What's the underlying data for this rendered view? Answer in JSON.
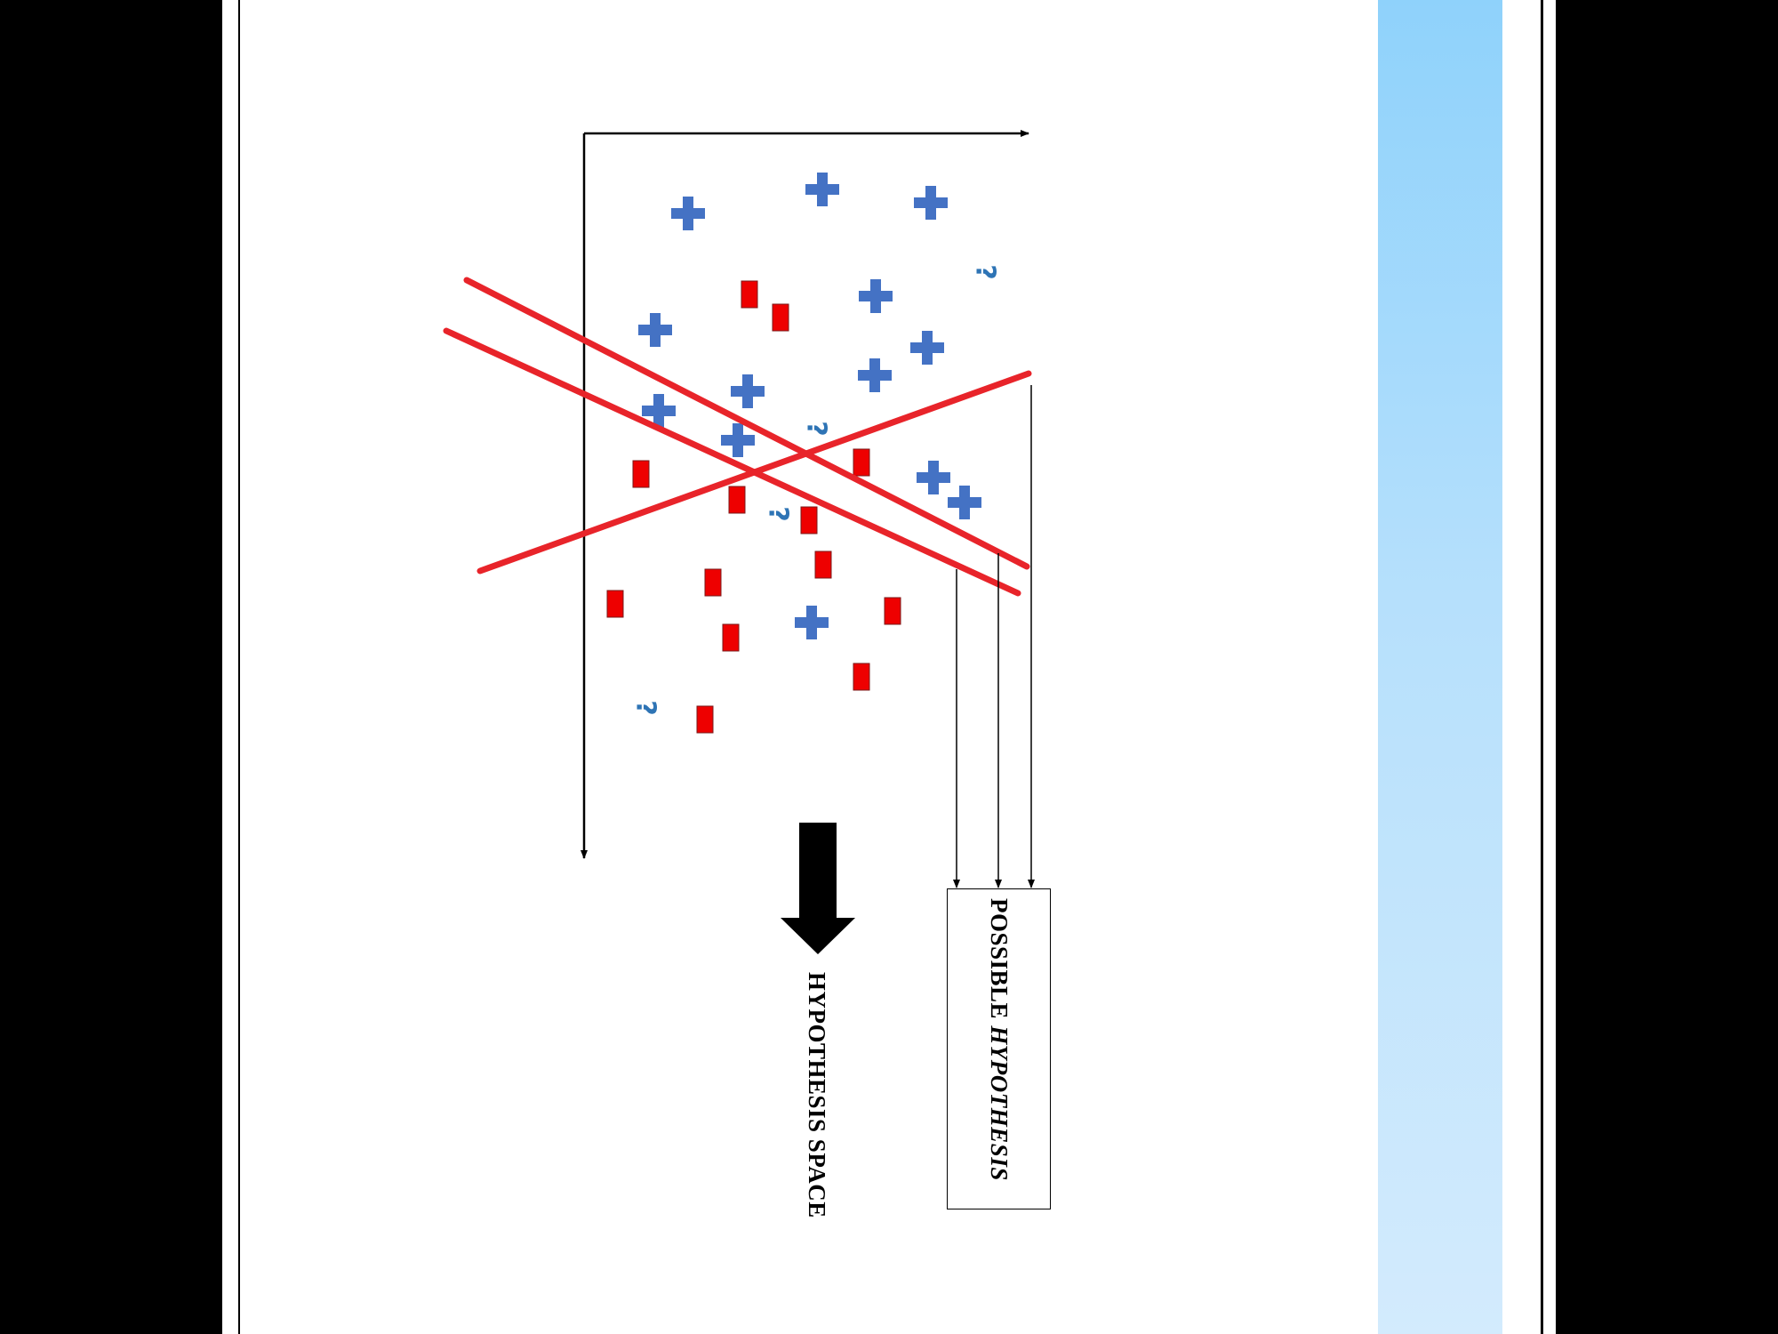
{
  "labels": {
    "hypothesis_space": "HYPOTHESIS SPACE",
    "possible": "POSSIBLE",
    "hypothesis_italic": "HYPOTHESIS"
  },
  "colors": {
    "plus": "#4472c4",
    "minus": "#ee0000",
    "question": "#2e74b5",
    "hypothesis_line": "#e8242a",
    "axis": "#000000"
  },
  "legend_glyphs": {
    "plus": "+",
    "minus": "-",
    "question": "?"
  },
  "icons": [
    "plus-icon",
    "minus-icon",
    "question-icon",
    "down-arrow-icon"
  ]
}
